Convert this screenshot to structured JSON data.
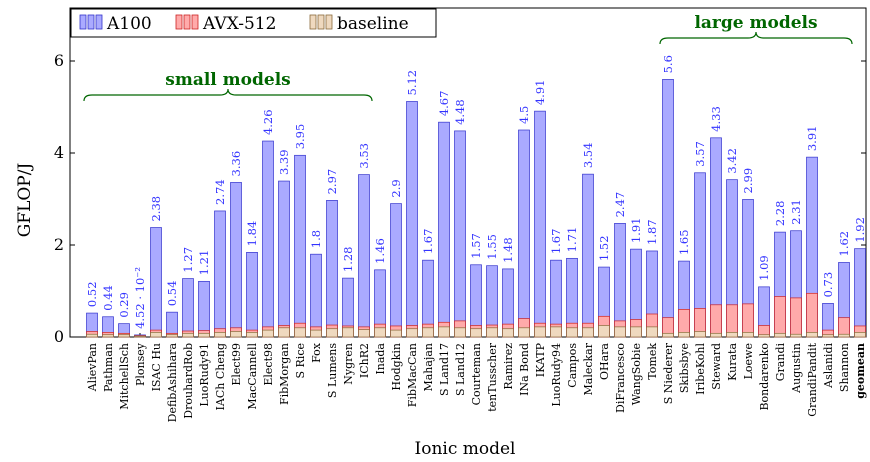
{
  "chart_data": {
    "type": "bar",
    "xlabel": "Ionic model",
    "ylabel": "GFLOP/J",
    "ylim": [
      0,
      6
    ],
    "yticks": [
      0,
      2,
      4,
      6
    ],
    "grid": false,
    "legend": "top-left",
    "categories": [
      "AlievPan",
      "Pathman",
      "MitchellSch",
      "Plonsey",
      "ISAC Hu",
      "DefibAshihara",
      "DrouhardRob",
      "LuoRudy91",
      "IACh Cheng",
      "Elect99",
      "MacCannell",
      "Elect98",
      "FibMorgan",
      "S Rice",
      "Fox",
      "S Lumens",
      "Nygren",
      "IChR2",
      "Inada",
      "Hodgkin",
      "FibMacCan",
      "Mahajan",
      "S Land17",
      "S Land12",
      "Courteman",
      "tenTusscher",
      "Ramirez",
      "INa Bond",
      "IKATP",
      "LuoRudy94",
      "Campos",
      "Maleckar",
      "OHara",
      "DiFrancesco",
      "WangSobie",
      "Tomek",
      "S Niederer",
      "Skibsbye",
      "IribeKohl",
      "Steward",
      "Kurata",
      "Loewe",
      "Bondarenko",
      "Grandi",
      "Augustin",
      "GrandiPandit",
      "Aslanidi",
      "Shannon",
      "geomean"
    ],
    "value_labels": [
      "0.52",
      "0.44",
      "0.29",
      "4.52 · 10⁻²",
      "2.38",
      "0.54",
      "1.27",
      "1.21",
      "2.74",
      "3.36",
      "1.84",
      "4.26",
      "3.39",
      "3.95",
      "1.8",
      "2.97",
      "1.28",
      "3.53",
      "1.46",
      "2.9",
      "5.12",
      "1.67",
      "4.67",
      "4.48",
      "1.57",
      "1.55",
      "1.48",
      "4.5",
      "4.91",
      "1.67",
      "1.71",
      "3.54",
      "1.52",
      "2.47",
      "1.91",
      "1.87",
      "5.6",
      "1.65",
      "3.57",
      "4.33",
      "3.42",
      "2.99",
      "1.09",
      "2.28",
      "2.31",
      "3.91",
      "0.73",
      "1.62",
      "1.92"
    ],
    "series": [
      {
        "name": "A100",
        "color": "#aaaaff",
        "edge": "#3333cc",
        "values": [
          0.52,
          0.44,
          0.29,
          0.0452,
          2.38,
          0.54,
          1.27,
          1.21,
          2.74,
          3.36,
          1.84,
          4.26,
          3.39,
          3.95,
          1.8,
          2.97,
          1.28,
          3.53,
          1.46,
          2.9,
          5.12,
          1.67,
          4.67,
          4.48,
          1.57,
          1.55,
          1.48,
          4.5,
          4.91,
          1.67,
          1.71,
          3.54,
          1.52,
          2.47,
          1.91,
          1.87,
          5.6,
          1.65,
          3.57,
          4.33,
          3.42,
          2.99,
          1.09,
          2.28,
          2.31,
          3.91,
          0.73,
          1.62,
          1.92
        ]
      },
      {
        "name": "AVX-512",
        "color": "#ffaaaa",
        "edge": "#cc2222",
        "values": [
          0.12,
          0.1,
          0.08,
          0.03,
          0.15,
          0.08,
          0.13,
          0.14,
          0.18,
          0.2,
          0.15,
          0.22,
          0.25,
          0.3,
          0.22,
          0.26,
          0.24,
          0.22,
          0.28,
          0.24,
          0.25,
          0.28,
          0.32,
          0.35,
          0.25,
          0.26,
          0.28,
          0.4,
          0.3,
          0.28,
          0.3,
          0.3,
          0.45,
          0.35,
          0.38,
          0.5,
          0.42,
          0.6,
          0.62,
          0.7,
          0.7,
          0.72,
          0.25,
          0.88,
          0.85,
          0.95,
          0.15,
          0.42,
          0.24
        ]
      },
      {
        "name": "baseline",
        "color": "#efd9bf",
        "edge": "#8a6a3a",
        "values": [
          0.06,
          0.05,
          0.05,
          0.02,
          0.1,
          0.05,
          0.08,
          0.08,
          0.1,
          0.12,
          0.1,
          0.15,
          0.2,
          0.2,
          0.15,
          0.18,
          0.2,
          0.16,
          0.2,
          0.15,
          0.18,
          0.2,
          0.22,
          0.2,
          0.18,
          0.2,
          0.18,
          0.2,
          0.22,
          0.22,
          0.2,
          0.2,
          0.25,
          0.22,
          0.22,
          0.22,
          0.08,
          0.1,
          0.12,
          0.08,
          0.1,
          0.1,
          0.05,
          0.08,
          0.06,
          0.1,
          0.05,
          0.06,
          0.1
        ]
      }
    ],
    "annotations": [
      {
        "text": "small models",
        "from": "AlievPan",
        "to": "IChR2"
      },
      {
        "text": "large models",
        "from": "S Niederer",
        "to": "Shannon"
      }
    ]
  }
}
